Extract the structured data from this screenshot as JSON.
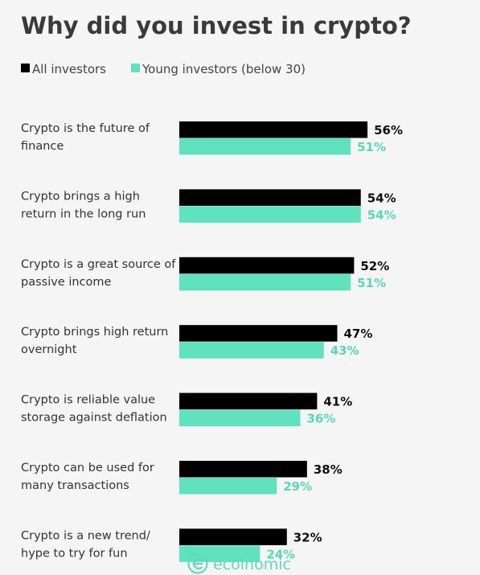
{
  "colors": {
    "all_investors": "#000000",
    "young_investors": "#5fe2bd",
    "young_label": "#57d9b3",
    "title": "#3a3a3a",
    "background": "#f5f5f5",
    "watermark": "#62d8bb"
  },
  "watermark": {
    "text": "ecoinomic",
    "icon": "coin-e-icon"
  },
  "chart_data": {
    "type": "bar",
    "orientation": "horizontal",
    "title": "Why did you invest in crypto?",
    "legend_position": "top-left",
    "grid": false,
    "xlim": [
      0,
      60
    ],
    "categories": [
      [
        "Crypto is the future of",
        "finance"
      ],
      [
        "Crypto brings a high",
        "return in the long run"
      ],
      [
        "Crypto is a great source of",
        "passive income"
      ],
      [
        "Crypto brings high return",
        "overnight"
      ],
      [
        "Crypto is reliable value",
        "storage against deflation"
      ],
      [
        "Crypto can be used for",
        "many transactions"
      ],
      [
        "Crypto is a new trend/",
        "hype to try for fun"
      ]
    ],
    "series": [
      {
        "name": "All investors",
        "values": [
          56,
          54,
          52,
          47,
          41,
          38,
          32
        ],
        "labels": [
          "56%",
          "54%",
          "52%",
          "47%",
          "41%",
          "38%",
          "32%"
        ]
      },
      {
        "name": "Young investors (below 30)",
        "values": [
          51,
          54,
          51,
          43,
          36,
          29,
          24
        ],
        "labels": [
          "51%",
          "54%",
          "51%",
          "43%",
          "36%",
          "29%",
          "24%"
        ]
      }
    ]
  }
}
